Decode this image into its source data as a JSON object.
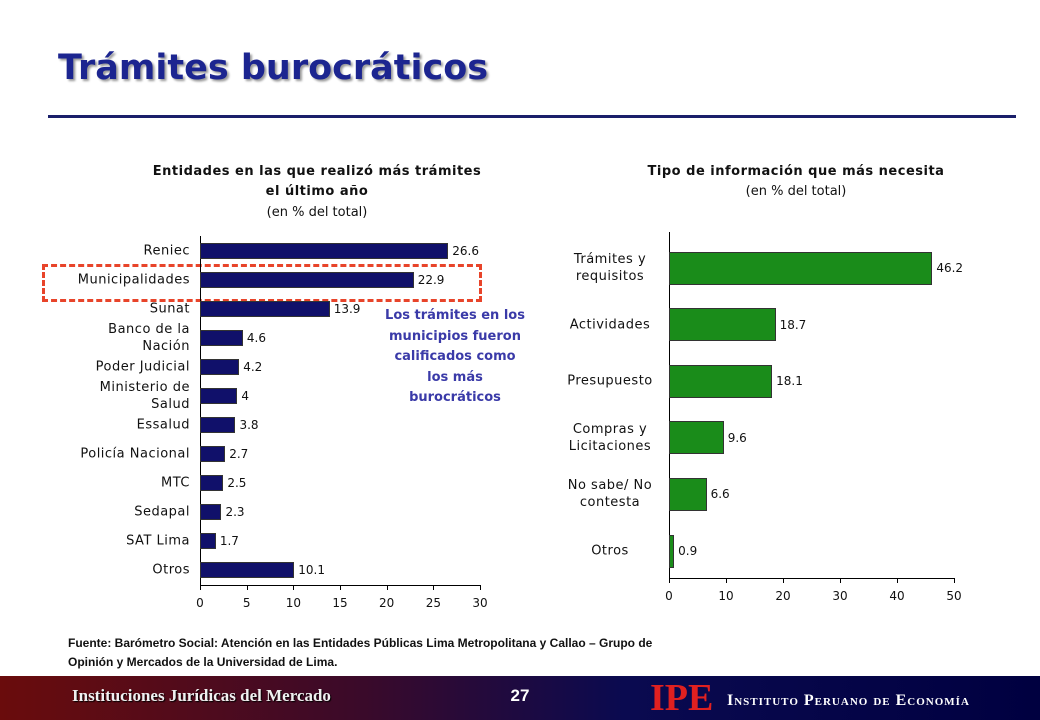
{
  "slide": {
    "title": "Trámites burocráticos",
    "annotation": "Los trámites en los municipios fueron calificados como los más burocráticos",
    "source": "Fuente: Barómetro Social: Atención en las Entidades Públicas Lima Metropolitana y Callao – Grupo de Opinión y Mercados de la Universidad de Lima.",
    "footer_left": "Instituciones Jurídicas del Mercado",
    "page": "27",
    "logo": "IPE",
    "logo_text": "Instituto Peruano de Economía"
  },
  "chart_data": [
    {
      "type": "barh",
      "title": "Entidades en las que realizó más trámites el último año",
      "subtitle": "(en % del total)",
      "categories": [
        "Reniec",
        "Municipalidades",
        "Sunat",
        "Banco de la Nación",
        "Poder Judicial",
        "Ministerio de Salud",
        "Essalud",
        "Policía Nacional",
        "MTC",
        "Sedapal",
        "SAT Lima",
        "Otros"
      ],
      "values": [
        26.6,
        22.9,
        13.9,
        4.6,
        4.2,
        4,
        3.8,
        2.7,
        2.5,
        2.3,
        1.7,
        10.1
      ],
      "color": "#10106a",
      "xlim": [
        0,
        30
      ],
      "xticks": [
        0,
        5,
        10,
        15,
        20,
        25,
        30
      ]
    },
    {
      "type": "barh",
      "title": "Tipo de información que más necesita",
      "subtitle": "(en % del total)",
      "categories": [
        "Trámites y requisitos",
        "Actividades",
        "Presupuesto",
        "Compras y Licitaciones",
        "No sabe/ No contesta",
        "Otros"
      ],
      "values": [
        46.2,
        18.7,
        18.1,
        9.6,
        6.6,
        0.9
      ],
      "color": "#1a8c1a",
      "xlim": [
        0,
        50
      ],
      "xticks": [
        0,
        10,
        20,
        30,
        40,
        50
      ]
    }
  ]
}
